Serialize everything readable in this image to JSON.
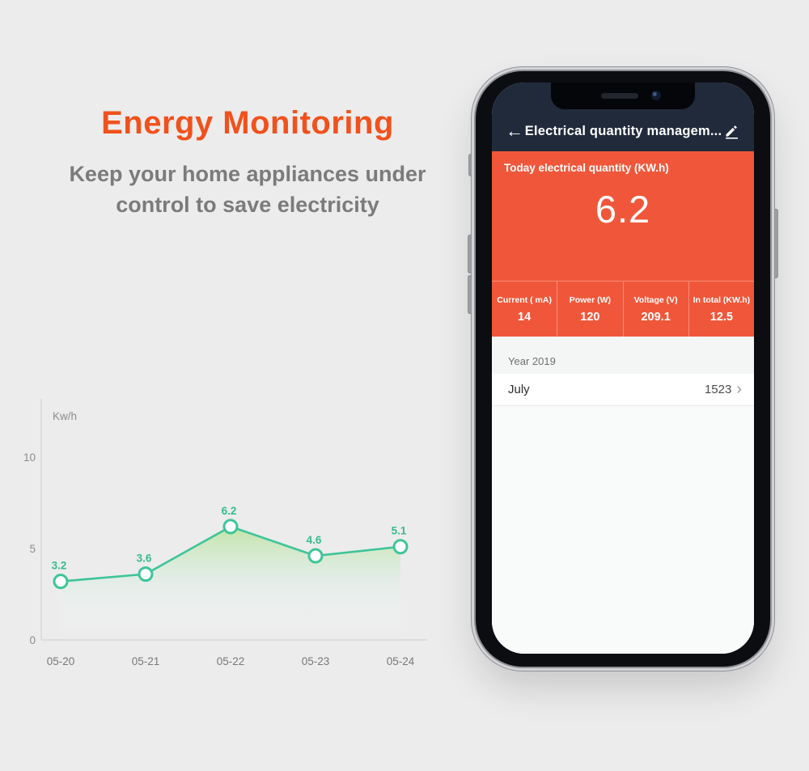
{
  "hero": {
    "title": "Energy Monitoring",
    "subtitle_line1": "Keep your home appliances under",
    "subtitle_line2": "control to save electricity"
  },
  "chart_data": {
    "type": "line",
    "title": "",
    "xlabel": "",
    "ylabel": "Kw/h",
    "categories": [
      "05-20",
      "05-21",
      "05-22",
      "05-23",
      "05-24"
    ],
    "values": [
      3.2,
      3.6,
      6.2,
      4.6,
      5.1
    ],
    "data_labels": [
      "3.2",
      "3.6",
      "6.2",
      "4.6",
      "5.1"
    ],
    "yticks": [
      0,
      5,
      10
    ],
    "ylim": [
      0,
      13
    ],
    "grid": "off",
    "legend": "none",
    "line_color": "#3ec49a",
    "label_color": "#35bb8f",
    "axis_color": "#d8d8d8",
    "tick_color": "#8c8c8c",
    "marker": "open-circle",
    "area_fill": "green fade gradient"
  },
  "phone": {
    "header": {
      "back_icon": "←",
      "title": "Electrical quantity managem...",
      "edit_icon_name": "pencil-edit"
    },
    "today": {
      "label": "Today electrical quantity (KW.h)",
      "value": "6.2"
    },
    "stats": [
      {
        "label": "Current ( mA)",
        "value": "14"
      },
      {
        "label": "Power (W)",
        "value": "120"
      },
      {
        "label": "Voltage (V)",
        "value": "209.1"
      },
      {
        "label": "In total (KW.h)",
        "value": "12.5"
      }
    ],
    "year_row": {
      "label": "Year 2019"
    },
    "month_row": {
      "label": "July",
      "value": "1523",
      "chevron": "›"
    },
    "colors": {
      "accent": "#f0573a",
      "header_navy": "#202a3a",
      "title_orange": "#f1511c",
      "chart_green": "#3ec49a"
    }
  }
}
